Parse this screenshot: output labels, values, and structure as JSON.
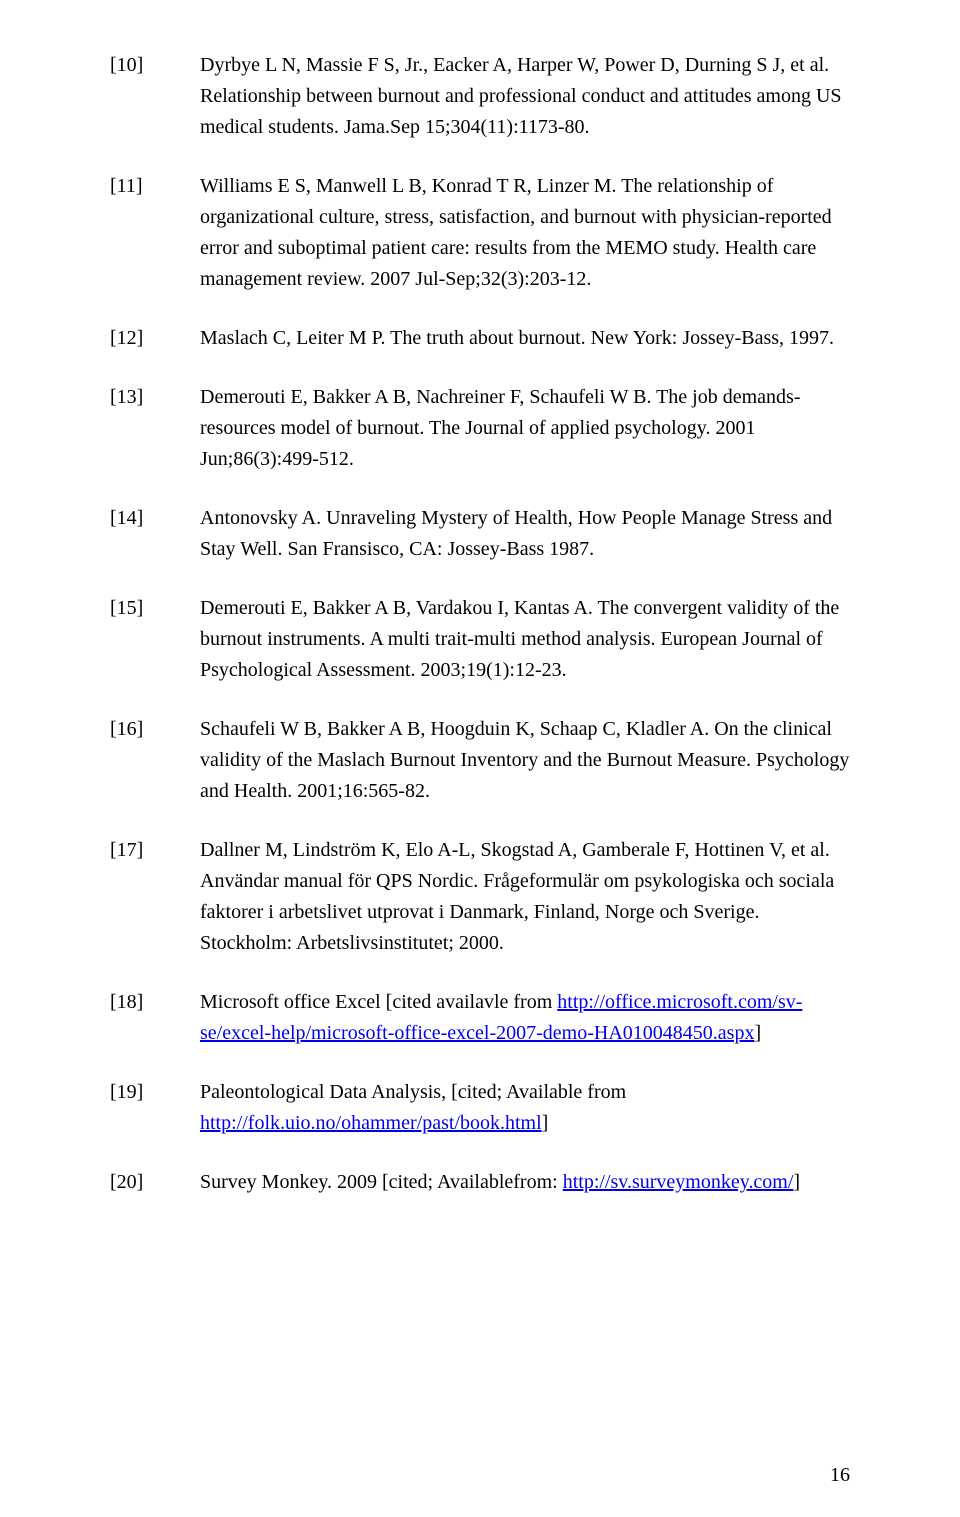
{
  "references": [
    {
      "num": "[10]",
      "html": "Dyrbye L N, Massie F S, Jr., Eacker A, Harper W, Power D, Durning S J, et al. Relationship between burnout and professional conduct and attitudes among US medical students. Jama.Sep 15;304(11):1173-80."
    },
    {
      "num": "[11]",
      "html": "Williams E S, Manwell L B, Konrad T R, Linzer M. The relationship of organizational culture, stress, satisfaction, and burnout with physician-reported error and suboptimal patient care: results from the MEMO study. Health care management review. 2007 Jul-Sep;32(3):203-12."
    },
    {
      "num": "[12]",
      "html": "Maslach C, Leiter M P. The truth about burnout. New York: Jossey-Bass, 1997."
    },
    {
      "num": "[13]",
      "html": "Demerouti E, Bakker A B, Nachreiner F, Schaufeli W B. The job demands-resources model of burnout. The Journal of applied psychology. 2001 Jun;86(3):499-512."
    },
    {
      "num": "[14]",
      "html": "Antonovsky A. Unraveling Mystery of Health, How People Manage Stress and Stay Well. San Fransisco, CA: Jossey-Bass 1987."
    },
    {
      "num": "[15]",
      "html": "Demerouti E, Bakker A B, Vardakou I, Kantas A. The convergent validity of the burnout instruments. A multi trait-multi method analysis. European Journal of Psychological Assessment. 2003;19(1):12-23."
    },
    {
      "num": "[16]",
      "html": "Schaufeli W B, Bakker A B, Hoogduin K, Schaap C, Kladler A. On the clinical validity of the Maslach Burnout Inventory and the Burnout Measure. Psychology and Health. 2001;16:565-82."
    },
    {
      "num": "[17]",
      "html": "Dallner M, Lindström K, Elo A-L, Skogstad A, Gamberale F, Hottinen V, et al. Användar manual för QPS Nordic. Frågeformulär om psykologiska och sociala faktorer i arbetslivet utprovat i Danmark, Finland, Norge och Sverige. Stockholm: Arbetslivsinstitutet; 2000."
    },
    {
      "num": "[18]",
      "html": "Microsoft office Excel [cited availavle from <a data-name=\"link-ms-office\" data-interactable=\"true\" href=\"#\">http://office.microsoft.com/sv-se/excel-help/microsoft-office-excel-2007-demo-HA010048450.aspx</a>]"
    },
    {
      "num": "[19]",
      "html": "Paleontological Data Analysis, [cited; Available from <a data-name=\"link-folk-uio\" data-interactable=\"true\" href=\"#\">http://folk.uio.no/ohammer/past/book.html</a>]"
    },
    {
      "num": "[20]",
      "html": "Survey Monkey.  2009  [cited; Availablefrom: <a data-name=\"link-surveymonkey\" data-interactable=\"true\" href=\"#\">http://sv.surveymonkey.com/</a>]"
    }
  ],
  "page_number": "16"
}
